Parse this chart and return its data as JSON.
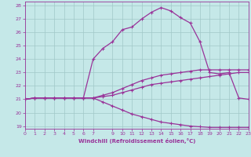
{
  "xlabel": "Windchill (Refroidissement éolien,°C)",
  "background_color": "#c5e8e8",
  "grid_color": "#a0c8c8",
  "line_color": "#993399",
  "xlim": [
    0,
    23
  ],
  "ylim": [
    18.8,
    28.3
  ],
  "xticks": [
    0,
    1,
    2,
    3,
    4,
    5,
    6,
    7,
    9,
    10,
    11,
    12,
    13,
    14,
    15,
    16,
    17,
    18,
    19,
    20,
    21,
    22,
    23
  ],
  "yticks": [
    19,
    20,
    21,
    22,
    23,
    24,
    25,
    26,
    27,
    28
  ],
  "line1_x": [
    0,
    1,
    2,
    3,
    4,
    5,
    6,
    7,
    8,
    9,
    10,
    11,
    12,
    13,
    14,
    15,
    16,
    17,
    18,
    19,
    20,
    21,
    22,
    23
  ],
  "line1_y": [
    21.0,
    21.1,
    21.1,
    21.1,
    21.1,
    21.1,
    21.1,
    21.1,
    21.2,
    21.3,
    21.5,
    21.7,
    21.9,
    22.1,
    22.2,
    22.3,
    22.4,
    22.5,
    22.6,
    22.7,
    22.8,
    22.9,
    23.0,
    23.0
  ],
  "line2_x": [
    0,
    1,
    2,
    3,
    4,
    5,
    6,
    7,
    8,
    9,
    10,
    11,
    12,
    13,
    14,
    15,
    16,
    17,
    18,
    19,
    20,
    21,
    22,
    23
  ],
  "line2_y": [
    21.0,
    21.1,
    21.1,
    21.1,
    21.1,
    21.1,
    21.1,
    21.1,
    21.3,
    21.5,
    21.8,
    22.1,
    22.4,
    22.6,
    22.8,
    22.9,
    23.0,
    23.1,
    23.2,
    23.2,
    23.2,
    23.2,
    23.2,
    23.2
  ],
  "line3_x": [
    0,
    1,
    2,
    3,
    4,
    5,
    6,
    7,
    8,
    9,
    10,
    11,
    12,
    13,
    14,
    15,
    16,
    17,
    18,
    19,
    20,
    21,
    22,
    23
  ],
  "line3_y": [
    21.0,
    21.1,
    21.1,
    21.1,
    21.1,
    21.1,
    21.1,
    21.1,
    20.8,
    20.5,
    20.2,
    19.9,
    19.7,
    19.5,
    19.3,
    19.2,
    19.1,
    19.0,
    18.95,
    18.9,
    18.9,
    18.9,
    18.9,
    18.9
  ],
  "line4_x": [
    0,
    1,
    2,
    3,
    4,
    5,
    6,
    7,
    8,
    9,
    10,
    11,
    12,
    13,
    14,
    15,
    16,
    17,
    18,
    19,
    20,
    21,
    22,
    23
  ],
  "line4_y": [
    21.0,
    21.1,
    21.1,
    21.1,
    21.1,
    21.1,
    21.1,
    24.0,
    24.8,
    25.3,
    26.2,
    26.4,
    27.0,
    27.5,
    27.85,
    27.6,
    27.1,
    26.7,
    25.3,
    23.0,
    22.9,
    23.0,
    21.1,
    21.0
  ]
}
